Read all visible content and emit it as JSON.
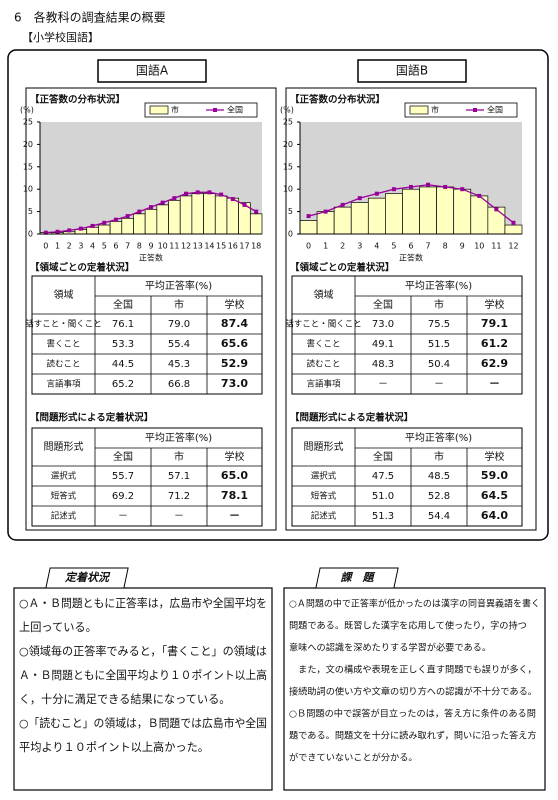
{
  "title": "6　各教科の調査結果の概要",
  "subtitle": "【小学校国語】",
  "chart_data": [
    {
      "type": "bar",
      "y_label": "(%)",
      "x_label": "正答数",
      "categories": [
        0,
        1,
        2,
        3,
        4,
        5,
        6,
        7,
        8,
        9,
        10,
        11,
        12,
        13,
        14,
        15,
        16,
        17,
        18
      ],
      "series": [
        {
          "name": "市",
          "type": "bar",
          "color": "#ffffc0",
          "values": [
            0.3,
            0.3,
            0.5,
            1,
            1.5,
            2,
            2.8,
            3.5,
            4.5,
            5.5,
            6.5,
            7.5,
            8.5,
            9,
            9,
            8.5,
            8,
            7,
            4.5
          ]
        },
        {
          "name": "全国",
          "type": "line",
          "color": "#990099",
          "values": [
            0.3,
            0.5,
            0.8,
            1.2,
            1.8,
            2.5,
            3.2,
            4,
            5,
            6,
            7,
            8,
            9,
            9.3,
            9.3,
            8.8,
            7.8,
            6.5,
            5
          ]
        }
      ],
      "ylim": [
        0,
        25
      ],
      "yticks": [
        0,
        5,
        10,
        15,
        20,
        25
      ]
    },
    {
      "type": "bar",
      "y_label": "(%)",
      "x_label": "正答数",
      "categories": [
        0,
        1,
        2,
        3,
        4,
        5,
        6,
        7,
        8,
        9,
        10,
        11,
        12
      ],
      "series": [
        {
          "name": "市",
          "type": "bar",
          "color": "#ffffc0",
          "values": [
            3,
            5,
            6,
            7,
            8,
            9,
            10,
            10.5,
            10.5,
            10,
            8.5,
            6,
            2
          ]
        },
        {
          "name": "全国",
          "type": "line",
          "color": "#990099",
          "values": [
            4,
            5,
            6.5,
            8,
            9,
            10,
            10.5,
            11,
            10.5,
            10,
            8.5,
            5.5,
            2.5
          ]
        }
      ],
      "ylim": [
        0,
        25
      ],
      "yticks": [
        0,
        5,
        10,
        15,
        20,
        25
      ]
    }
  ],
  "panels": [
    {
      "tab": "国語A",
      "distribution_heading": "【正答数の分布状況】",
      "area_heading": "【領域ごとの定着状況】",
      "area_table": {
        "header": [
          "領域",
          "平均正答率(%)",
          "全国",
          "市",
          "学校"
        ],
        "rows": [
          [
            "話すこと・聞くこと",
            "76.1",
            "79.0",
            "87.4"
          ],
          [
            "書くこと",
            "53.3",
            "55.4",
            "65.6"
          ],
          [
            "読むこと",
            "44.5",
            "45.3",
            "52.9"
          ],
          [
            "言語事項",
            "65.2",
            "66.8",
            "73.0"
          ]
        ]
      },
      "format_heading": "【問題形式による定着状況】",
      "format_table": {
        "header": [
          "問題形式",
          "平均正答率(%)",
          "全国",
          "市",
          "学校"
        ],
        "rows": [
          [
            "選択式",
            "55.7",
            "57.1",
            "65.0"
          ],
          [
            "短答式",
            "69.2",
            "71.2",
            "78.1"
          ],
          [
            "記述式",
            "－",
            "－",
            "－"
          ]
        ]
      }
    },
    {
      "tab": "国語B",
      "distribution_heading": "【正答数の分布状況】",
      "area_heading": "【領域ごとの定着状況】",
      "area_table": {
        "header": [
          "領域",
          "平均正答率(%)",
          "全国",
          "市",
          "学校"
        ],
        "rows": [
          [
            "話すこと・聞くこと",
            "73.0",
            "75.5",
            "79.1"
          ],
          [
            "書くこと",
            "49.1",
            "51.5",
            "61.2"
          ],
          [
            "読むこと",
            "48.3",
            "50.4",
            "62.9"
          ],
          [
            "言語事項",
            "－",
            "－",
            "－"
          ]
        ]
      },
      "format_heading": "【問題形式による定着状況】",
      "format_table": {
        "header": [
          "問題形式",
          "平均正答率(%)",
          "全国",
          "市",
          "学校"
        ],
        "rows": [
          [
            "選択式",
            "47.5",
            "48.5",
            "59.0"
          ],
          [
            "短答式",
            "51.0",
            "52.8",
            "64.5"
          ],
          [
            "記述式",
            "51.3",
            "54.4",
            "64.0"
          ]
        ]
      }
    }
  ],
  "boxes": [
    {
      "title": "定着状況",
      "lines": [
        "○Ａ・Ｂ問題ともに正答率は，広島市や全国平均を",
        "上回っている。",
        "○領域毎の正答率でみると，「書くこと」の領域は",
        "Ａ・Ｂ問題ともに全国平均より１０ポイント以上高",
        "く，十分に満足できる結果になっている。",
        "○「読むこと」の領域は，Ｂ問題では広島市や全国",
        "平均より１０ポイント以上高かった。"
      ]
    },
    {
      "title": "課　題",
      "lines": [
        "○Ａ問題の中で正答率が低かったのは漢字の同音異義語を書く",
        "問題である。既習した漢字を応用して使ったり，字の持つ",
        "意味への認識を深めたりする学習が必要である。",
        "　また，文の構成や表現を正しく直す問題でも誤りが多く，",
        "接続助詞の使い方や文章の切り方への認識が不十分である。",
        "○Ｂ問題の中で誤答が目立ったのは，答え方に条件のある問",
        "題である。問題文を十分に読み取れず，問いに沿った答え方",
        "ができていないことが分かる。"
      ]
    }
  ]
}
